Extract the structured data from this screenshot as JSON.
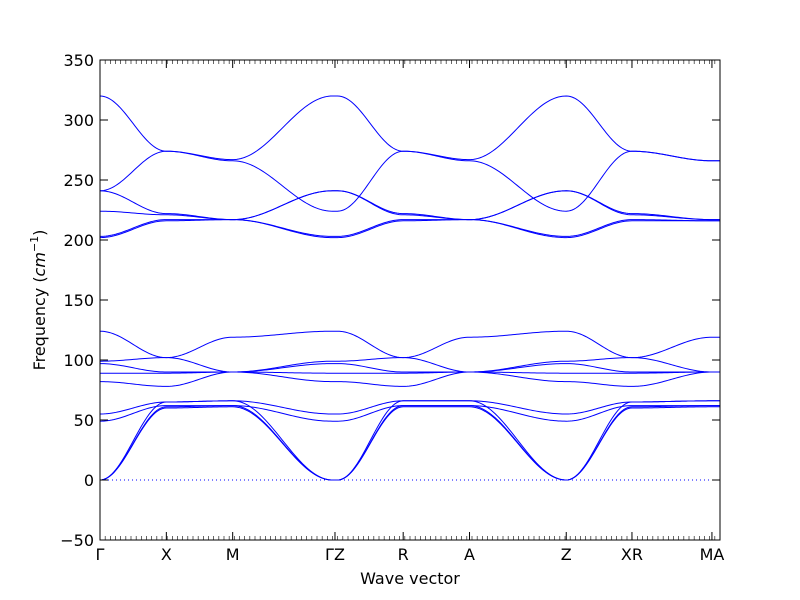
{
  "chart_data": {
    "type": "line",
    "title": "",
    "xlabel": "Wave vector",
    "ylabel": "Frequency",
    "ylabel_unit_base": "cm",
    "ylabel_unit_exp": "−1",
    "ylim": [
      -50,
      350
    ],
    "yticks": [
      -50,
      0,
      50,
      100,
      150,
      200,
      250,
      300,
      350
    ],
    "xlim": [
      0,
      1
    ],
    "high_symmetry_points": [
      {
        "label": "Γ",
        "x": 0.0
      },
      {
        "label": "X",
        "x": 0.107
      },
      {
        "label": "M",
        "x": 0.214
      },
      {
        "label": "ΓZ",
        "x": 0.379
      },
      {
        "label": "R",
        "x": 0.489
      },
      {
        "label": "A",
        "x": 0.596
      },
      {
        "label": "Z",
        "x": 0.752
      },
      {
        "label": "XR",
        "x": 0.858
      },
      {
        "label": "MA",
        "x": 0.987
      }
    ],
    "zero_line": {
      "y": 0,
      "style": "dotted"
    },
    "grid": false,
    "line_color": "#0000ff",
    "series": [
      {
        "x": [
          0.0,
          0.107,
          0.214,
          0.375,
          0.383,
          0.489,
          0.596,
          0.752,
          0.858,
          0.987,
          1.0
        ],
        "y": [
          0,
          60,
          61,
          0,
          0,
          61,
          61,
          0,
          60,
          61,
          61
        ]
      },
      {
        "x": [
          0.0,
          0.107,
          0.214,
          0.375,
          0.383,
          0.489,
          0.596,
          0.752,
          0.858,
          0.987,
          1.0
        ],
        "y": [
          0,
          61,
          62,
          0,
          0,
          62,
          62,
          0,
          61,
          62,
          62
        ]
      },
      {
        "x": [
          0.0,
          0.107,
          0.214,
          0.375,
          0.383,
          0.489,
          0.596,
          0.752,
          0.858,
          0.987,
          1.0
        ],
        "y": [
          0,
          65,
          66,
          0,
          0,
          66,
          66,
          0,
          65,
          66,
          66
        ]
      },
      {
        "x": [
          0.0,
          0.107,
          0.214,
          0.375,
          0.383,
          0.489,
          0.596,
          0.752,
          0.858,
          0.987,
          1.0
        ],
        "y": [
          49,
          62,
          62,
          49,
          49,
          62,
          62,
          49,
          62,
          62,
          62
        ]
      },
      {
        "x": [
          0.0,
          0.107,
          0.214,
          0.375,
          0.383,
          0.489,
          0.596,
          0.752,
          0.858,
          0.987,
          1.0
        ],
        "y": [
          55,
          65,
          66,
          55,
          55,
          66,
          66,
          55,
          65,
          66,
          66
        ]
      },
      {
        "x": [
          0.0,
          0.107,
          0.214,
          0.375,
          0.383,
          0.489,
          0.596,
          0.752,
          0.858,
          0.987,
          1.0
        ],
        "y": [
          82,
          78,
          90,
          82,
          82,
          78,
          90,
          82,
          78,
          90,
          90
        ]
      },
      {
        "x": [
          0.0,
          0.107,
          0.214,
          0.375,
          0.383,
          0.489,
          0.596,
          0.752,
          0.858,
          0.987,
          1.0
        ],
        "y": [
          89,
          89,
          90,
          89,
          89,
          89,
          90,
          89,
          89,
          90,
          90
        ]
      },
      {
        "x": [
          0.0,
          0.107,
          0.214,
          0.375,
          0.383,
          0.489,
          0.596,
          0.752,
          0.858,
          0.987,
          1.0
        ],
        "y": [
          97,
          90,
          90,
          97,
          97,
          90,
          90,
          97,
          90,
          90,
          90
        ]
      },
      {
        "x": [
          0.0,
          0.107,
          0.214,
          0.375,
          0.383,
          0.489,
          0.596,
          0.752,
          0.858,
          0.987,
          1.0
        ],
        "y": [
          99,
          102,
          90,
          99,
          99,
          102,
          90,
          99,
          102,
          90,
          90
        ]
      },
      {
        "x": [
          0.0,
          0.107,
          0.214,
          0.375,
          0.383,
          0.489,
          0.596,
          0.752,
          0.858,
          0.987,
          1.0
        ],
        "y": [
          124,
          102,
          119,
          124,
          124,
          102,
          119,
          124,
          102,
          119,
          119
        ]
      },
      {
        "x": [
          0.0,
          0.107,
          0.214,
          0.375,
          0.383,
          0.489,
          0.596,
          0.752,
          0.858,
          0.987,
          1.0
        ],
        "y": [
          202,
          216,
          217,
          202,
          202,
          216,
          217,
          202,
          216,
          216,
          216
        ]
      },
      {
        "x": [
          0.0,
          0.107,
          0.214,
          0.375,
          0.383,
          0.489,
          0.596,
          0.752,
          0.858,
          0.987,
          1.0
        ],
        "y": [
          203,
          217,
          217,
          203,
          203,
          217,
          217,
          203,
          217,
          216,
          216
        ]
      },
      {
        "x": [
          0.0,
          0.107,
          0.214,
          0.375,
          0.383,
          0.489,
          0.596,
          0.752,
          0.858,
          0.987,
          1.0
        ],
        "y": [
          224,
          221,
          217,
          241,
          241,
          221,
          217,
          241,
          221,
          217,
          217
        ]
      },
      {
        "x": [
          0.0,
          0.107,
          0.214,
          0.375,
          0.383,
          0.489,
          0.596,
          0.752,
          0.858,
          0.987,
          1.0
        ],
        "y": [
          241,
          222,
          217,
          241,
          241,
          222,
          217,
          241,
          222,
          217,
          217
        ]
      },
      {
        "x": [
          0.0,
          0.107,
          0.214,
          0.375,
          0.383,
          0.489,
          0.596,
          0.752,
          0.858,
          0.987,
          1.0
        ],
        "y": [
          241,
          274,
          266,
          224,
          224,
          274,
          266,
          224,
          274,
          266,
          266
        ]
      },
      {
        "x": [
          0.0,
          0.107,
          0.214,
          0.375,
          0.383,
          0.489,
          0.596,
          0.752,
          0.858,
          0.987,
          1.0
        ],
        "y": [
          320,
          274,
          267,
          320,
          320,
          274,
          267,
          320,
          274,
          266,
          266
        ]
      }
    ]
  }
}
